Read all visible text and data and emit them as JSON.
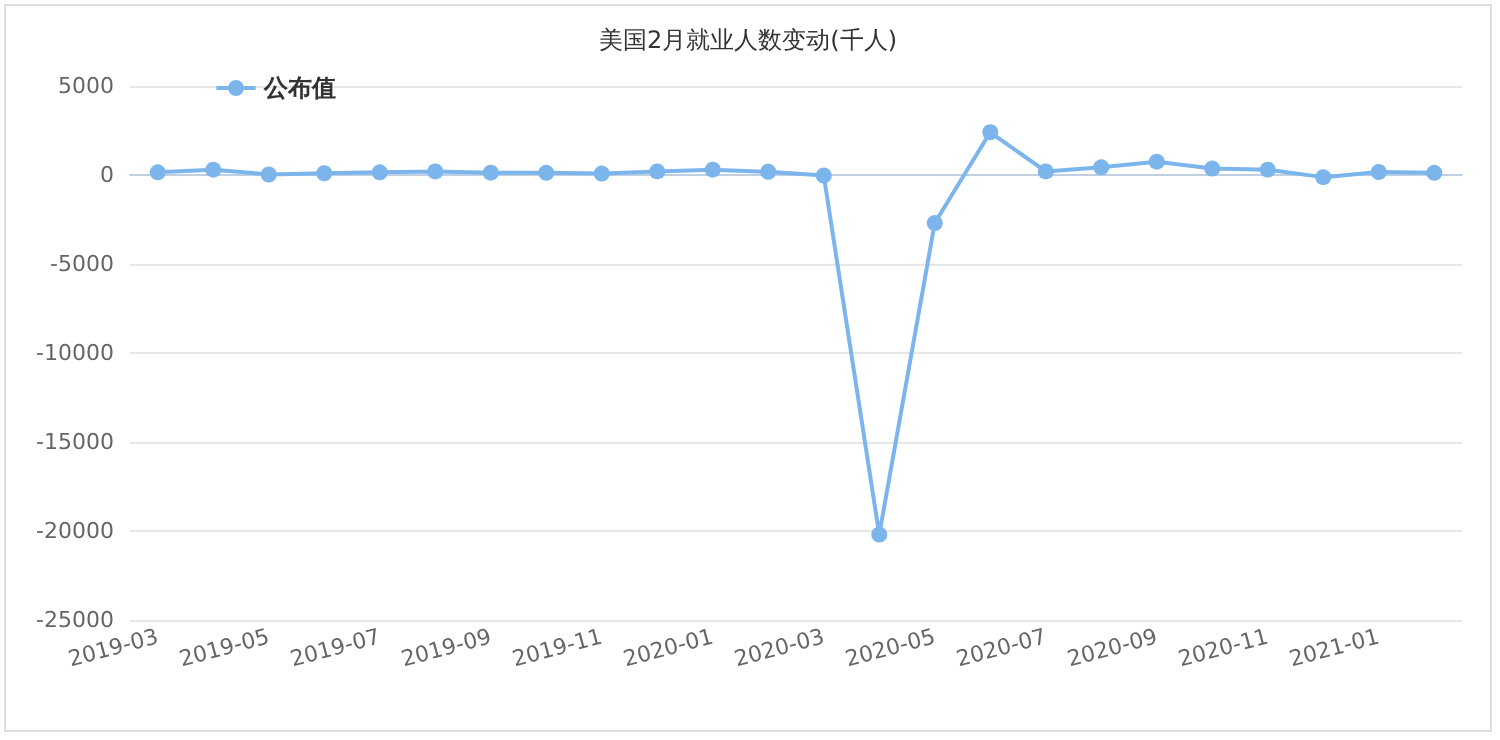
{
  "chart_data": {
    "type": "line",
    "title": "美国2月就业人数变动(千人)",
    "categories": [
      "2019-03",
      null,
      "2019-05",
      null,
      "2019-07",
      null,
      "2019-09",
      null,
      "2019-11",
      null,
      "2020-01",
      null,
      "2020-03",
      null,
      "2020-05",
      null,
      "2020-07",
      null,
      "2020-09",
      null,
      "2020-11",
      null,
      "2021-01",
      null
    ],
    "series": [
      {
        "name": "公布值",
        "color": "#7cb5ec",
        "values": [
          150,
          300,
          30,
          100,
          150,
          200,
          130,
          120,
          80,
          200,
          300,
          180,
          -30,
          -20200,
          -2700,
          2400,
          200,
          430,
          750,
          360,
          300,
          -120,
          170,
          120
        ]
      }
    ],
    "ylim": [
      -25000,
      5000
    ],
    "yticks": [
      -25000,
      -20000,
      -15000,
      -10000,
      -5000,
      0,
      5000
    ],
    "grid": "y",
    "legend": "top left",
    "marker": "circle",
    "line_style": "solid"
  }
}
